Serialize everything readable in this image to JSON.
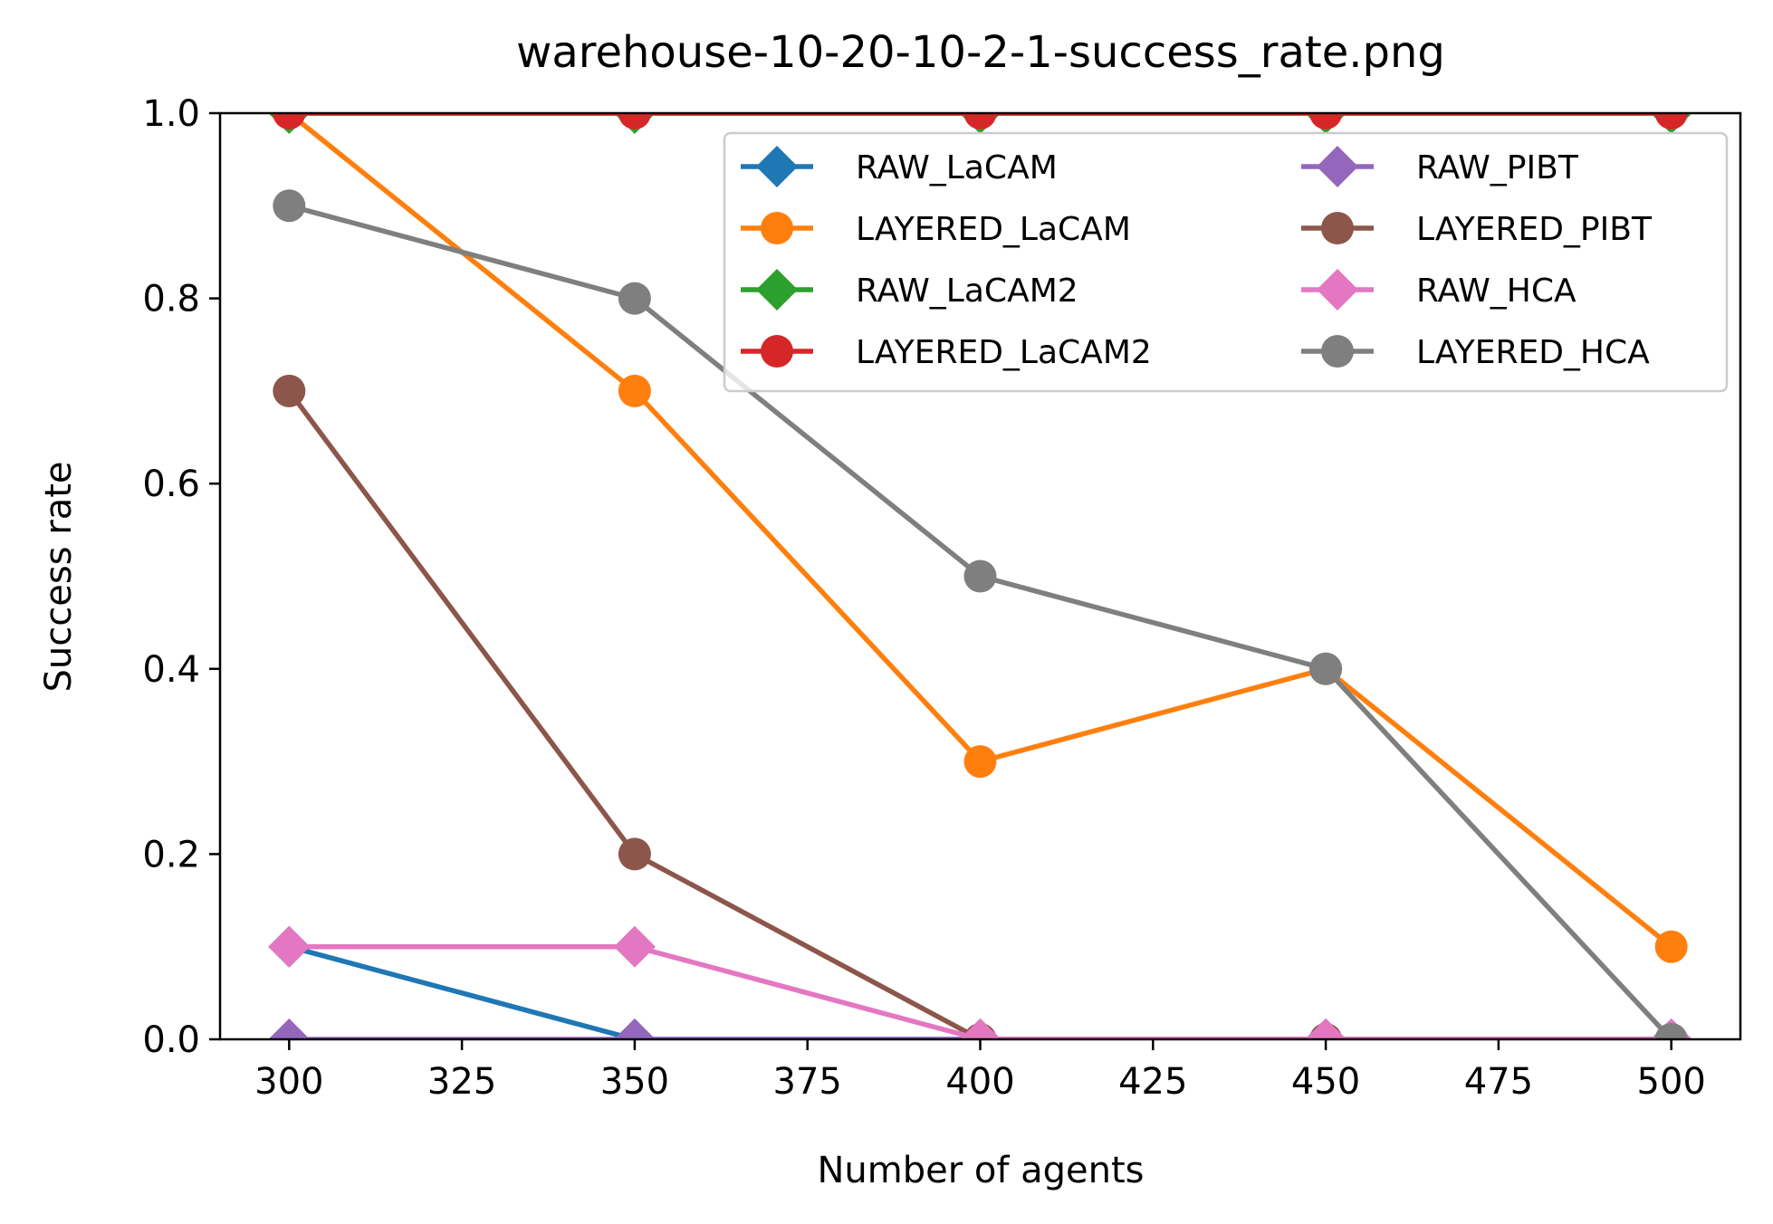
{
  "chart_data": {
    "type": "line",
    "title": "warehouse-10-20-10-2-1-success_rate.png",
    "xlabel": "Number of agents",
    "ylabel": "Success rate",
    "xlim": [
      290,
      510
    ],
    "ylim": [
      0.0,
      1.0
    ],
    "x_ticks": [
      300,
      325,
      350,
      375,
      400,
      425,
      450,
      475,
      500
    ],
    "x_tick_labels": [
      "300",
      "325",
      "350",
      "375",
      "400",
      "425",
      "450",
      "475",
      "500"
    ],
    "y_ticks": [
      0.0,
      0.2,
      0.4,
      0.6,
      0.8,
      1.0
    ],
    "y_tick_labels": [
      "0.0",
      "0.2",
      "0.4",
      "0.6",
      "0.8",
      "1.0"
    ],
    "grid": false,
    "legend": {
      "placement": "top-right",
      "columns": 2
    },
    "x": [
      300,
      350,
      400,
      450,
      500
    ],
    "series": [
      {
        "name": "RAW_LaCAM",
        "color": "#1f77b4",
        "marker": "diamond",
        "values": [
          0.1,
          0.0,
          0.0,
          0.0,
          0.0
        ]
      },
      {
        "name": "LAYERED_LaCAM",
        "color": "#ff7f0e",
        "marker": "circle",
        "values": [
          1.0,
          0.7,
          0.3,
          0.4,
          0.1
        ]
      },
      {
        "name": "RAW_LaCAM2",
        "color": "#2ca02c",
        "marker": "diamond",
        "values": [
          1.0,
          1.0,
          1.0,
          1.0,
          1.0
        ]
      },
      {
        "name": "LAYERED_LaCAM2",
        "color": "#d62728",
        "marker": "circle",
        "values": [
          1.0,
          1.0,
          1.0,
          1.0,
          1.0
        ]
      },
      {
        "name": "RAW_PIBT",
        "color": "#9467bd",
        "marker": "diamond",
        "values": [
          0.0,
          0.0,
          0.0,
          0.0,
          0.0
        ]
      },
      {
        "name": "LAYERED_PIBT",
        "color": "#8c564b",
        "marker": "circle",
        "values": [
          0.7,
          0.2,
          0.0,
          0.0,
          0.0
        ]
      },
      {
        "name": "RAW_HCA",
        "color": "#e377c2",
        "marker": "diamond",
        "values": [
          0.1,
          0.1,
          0.0,
          0.0,
          0.0
        ]
      },
      {
        "name": "LAYERED_HCA",
        "color": "#7f7f7f",
        "marker": "circle",
        "values": [
          0.9,
          0.8,
          0.5,
          0.4,
          0.0
        ]
      }
    ]
  }
}
